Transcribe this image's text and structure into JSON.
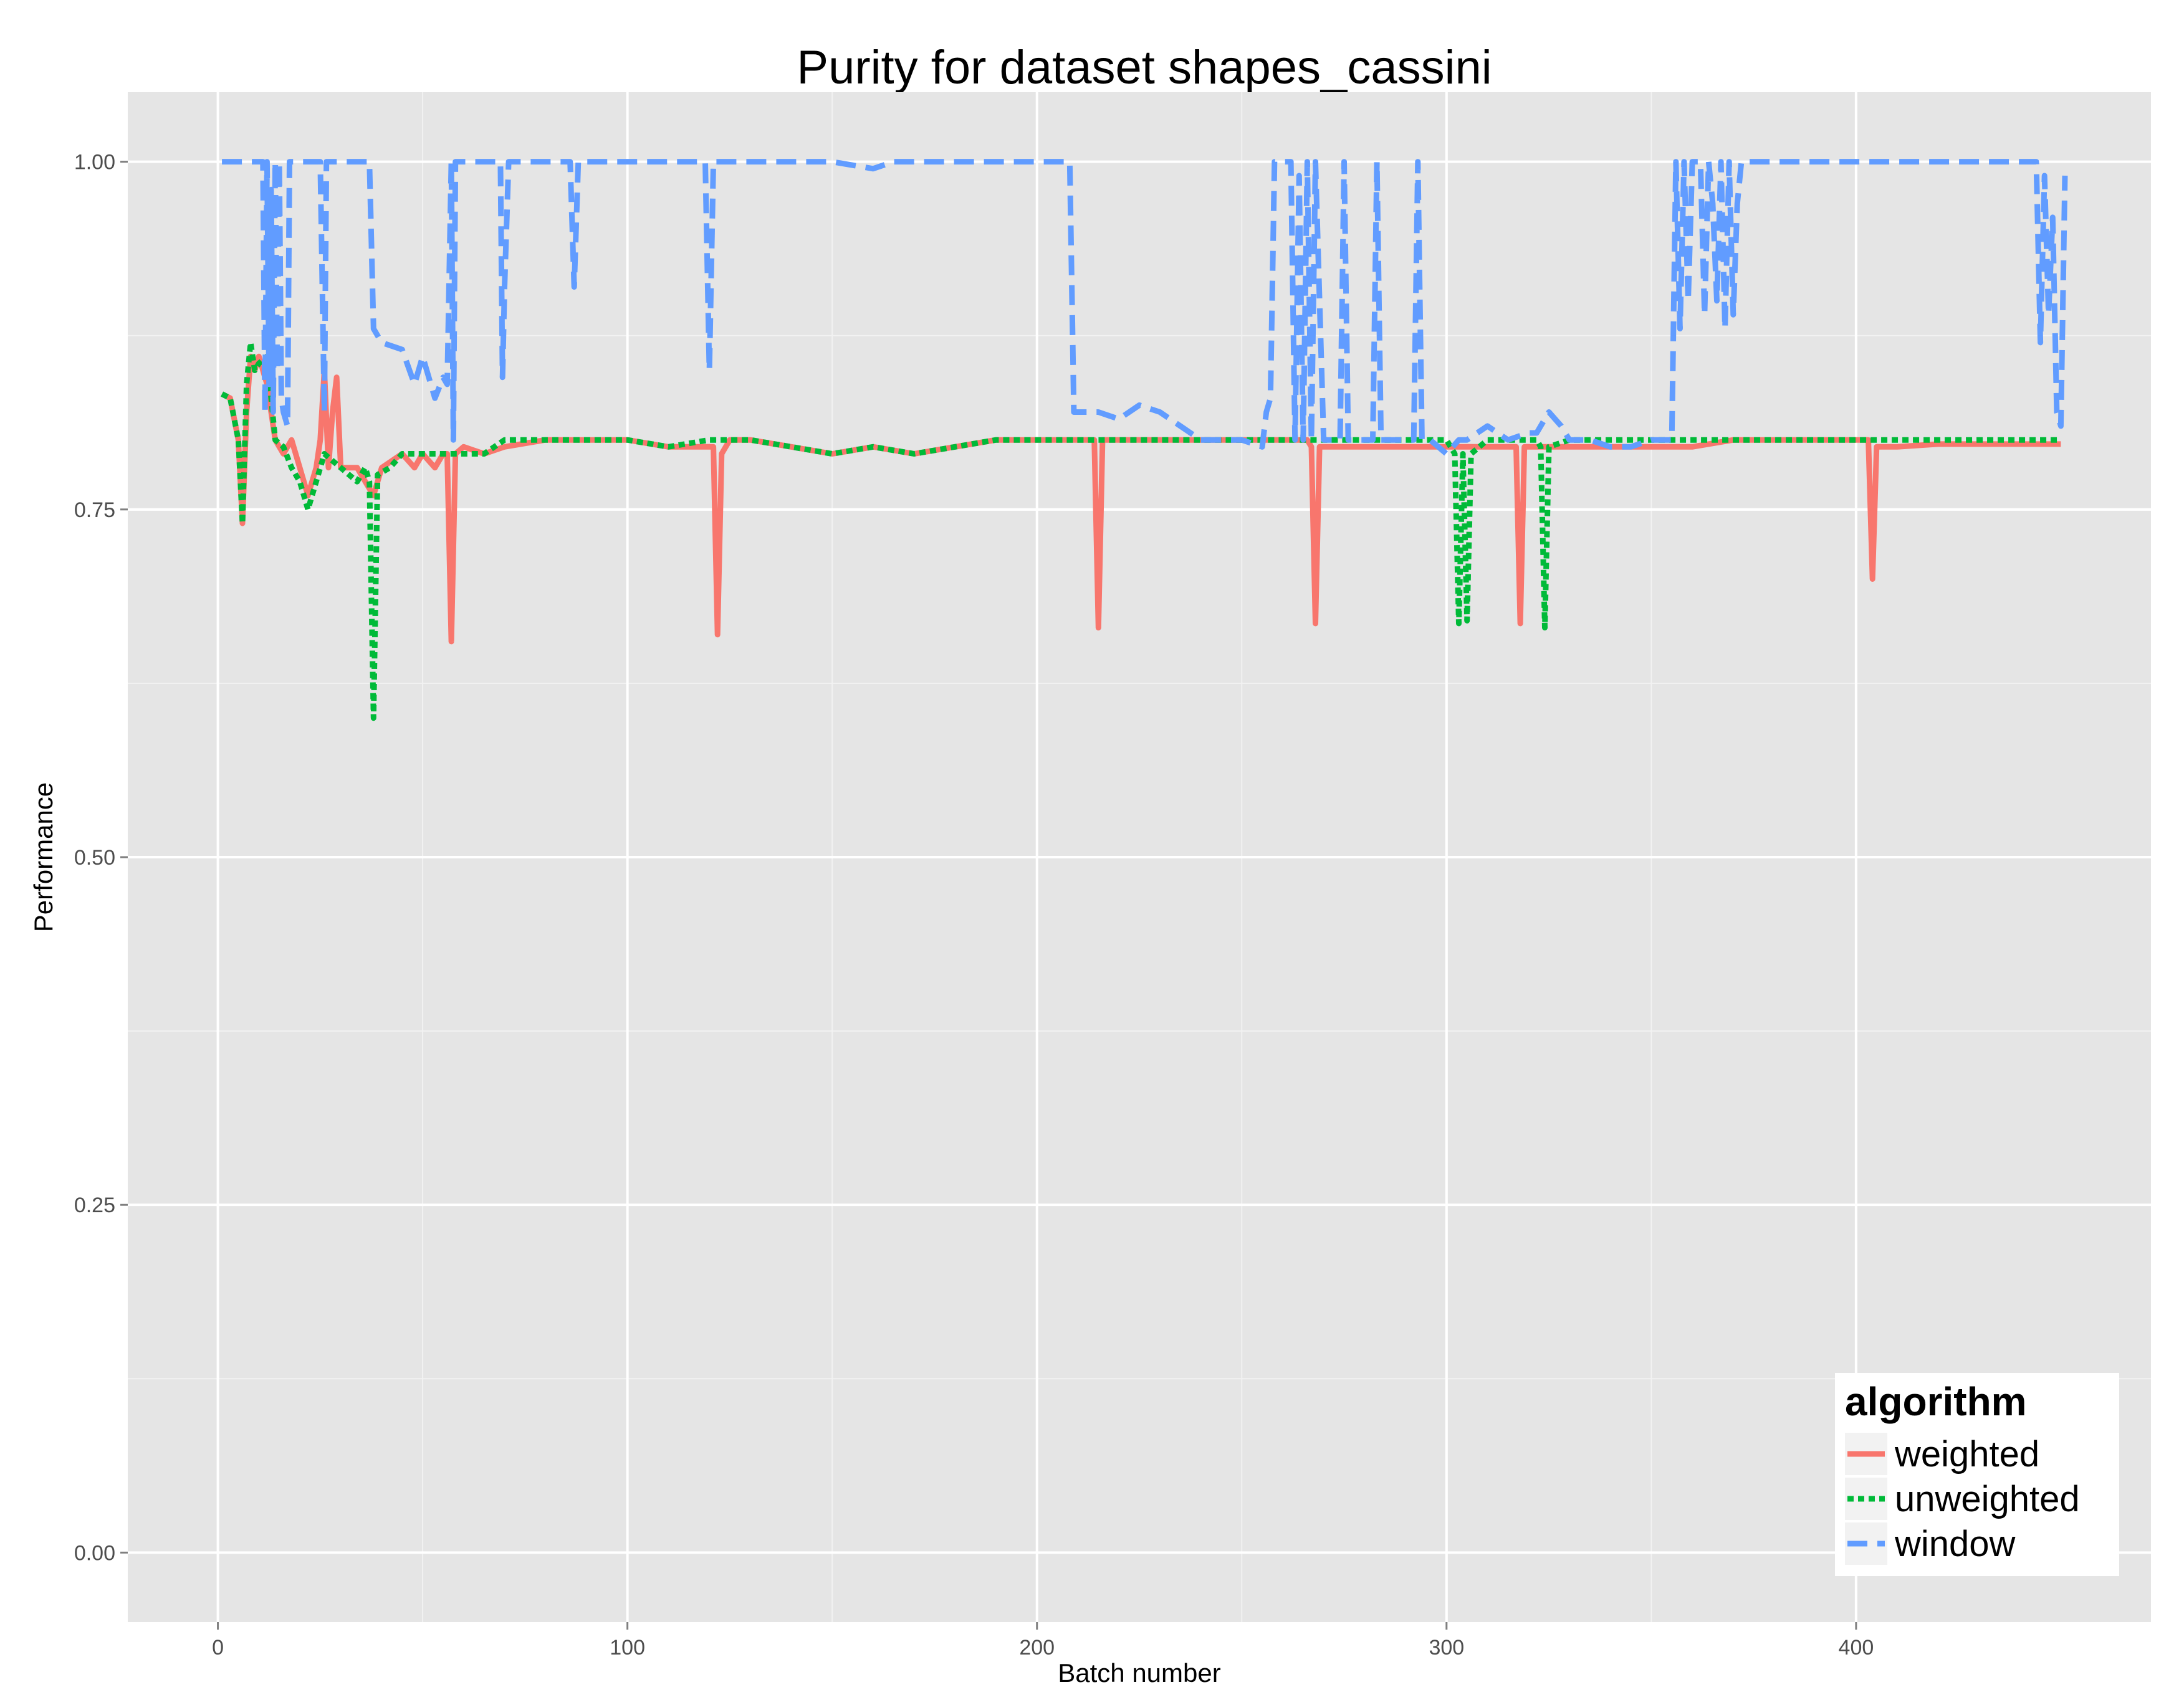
{
  "chart_data": {
    "type": "line",
    "title": "Purity for dataset shapes_cassini",
    "xlabel": "Batch number",
    "ylabel": "Performance",
    "xlim": [
      -22,
      472
    ],
    "ylim": [
      -0.05,
      1.05
    ],
    "x_ticks": [
      0,
      100,
      200,
      300,
      400
    ],
    "x_tick_labels": [
      "0",
      "100",
      "200",
      "300",
      "400"
    ],
    "y_ticks": [
      0,
      0.25,
      0.5,
      0.75,
      1
    ],
    "y_tick_labels": [
      "0.00",
      "0.25",
      "0.50",
      "0.75",
      "1.00"
    ],
    "grid": true,
    "legend": {
      "title": "algorithm",
      "position": "bottom-right",
      "entries": [
        "weighted",
        "unweighted",
        "window"
      ]
    },
    "series": [
      {
        "name": "weighted",
        "color": "#F8766D",
        "dash": "solid",
        "points": [
          [
            1,
            0.833
          ],
          [
            3,
            0.83
          ],
          [
            5,
            0.8
          ],
          [
            6,
            0.74
          ],
          [
            7,
            0.82
          ],
          [
            8,
            0.86
          ],
          [
            9,
            0.85
          ],
          [
            10,
            0.86
          ],
          [
            12,
            0.84
          ],
          [
            14,
            0.8
          ],
          [
            16,
            0.79
          ],
          [
            18,
            0.8
          ],
          [
            20,
            0.78
          ],
          [
            22,
            0.76
          ],
          [
            24,
            0.78
          ],
          [
            25,
            0.8
          ],
          [
            26,
            0.85
          ],
          [
            27,
            0.78
          ],
          [
            28,
            0.82
          ],
          [
            29,
            0.845
          ],
          [
            30,
            0.78
          ],
          [
            32,
            0.78
          ],
          [
            34,
            0.78
          ],
          [
            36,
            0.77
          ],
          [
            38,
            0.76
          ],
          [
            40,
            0.78
          ],
          [
            45,
            0.79
          ],
          [
            48,
            0.78
          ],
          [
            50,
            0.79
          ],
          [
            53,
            0.78
          ],
          [
            55,
            0.79
          ],
          [
            56,
            0.79
          ],
          [
            57,
            0.655
          ],
          [
            58,
            0.79
          ],
          [
            60,
            0.795
          ],
          [
            65,
            0.79
          ],
          [
            70,
            0.795
          ],
          [
            80,
            0.8
          ],
          [
            90,
            0.8
          ],
          [
            100,
            0.8
          ],
          [
            110,
            0.795
          ],
          [
            120,
            0.795
          ],
          [
            121,
            0.795
          ],
          [
            122,
            0.66
          ],
          [
            123,
            0.79
          ],
          [
            125,
            0.8
          ],
          [
            130,
            0.8
          ],
          [
            140,
            0.795
          ],
          [
            150,
            0.79
          ],
          [
            160,
            0.795
          ],
          [
            170,
            0.79
          ],
          [
            180,
            0.795
          ],
          [
            190,
            0.8
          ],
          [
            200,
            0.8
          ],
          [
            210,
            0.8
          ],
          [
            214,
            0.8
          ],
          [
            215,
            0.665
          ],
          [
            216,
            0.8
          ],
          [
            220,
            0.8
          ],
          [
            230,
            0.8
          ],
          [
            240,
            0.8
          ],
          [
            250,
            0.8
          ],
          [
            260,
            0.8
          ],
          [
            266,
            0.8
          ],
          [
            267,
            0.795
          ],
          [
            268,
            0.668
          ],
          [
            269,
            0.795
          ],
          [
            272,
            0.795
          ],
          [
            280,
            0.795
          ],
          [
            290,
            0.795
          ],
          [
            300,
            0.795
          ],
          [
            310,
            0.795
          ],
          [
            316,
            0.795
          ],
          [
            317,
            0.795
          ],
          [
            318,
            0.668
          ],
          [
            319,
            0.795
          ],
          [
            322,
            0.795
          ],
          [
            330,
            0.795
          ],
          [
            340,
            0.795
          ],
          [
            350,
            0.795
          ],
          [
            360,
            0.795
          ],
          [
            370,
            0.8
          ],
          [
            380,
            0.8
          ],
          [
            390,
            0.8
          ],
          [
            402,
            0.8
          ],
          [
            403,
            0.8
          ],
          [
            404,
            0.7
          ],
          [
            405,
            0.795
          ],
          [
            410,
            0.795
          ],
          [
            420,
            0.797
          ],
          [
            430,
            0.797
          ],
          [
            440,
            0.797
          ],
          [
            450,
            0.797
          ]
        ]
      },
      {
        "name": "unweighted",
        "color": "#00BA38",
        "dash": "dotted",
        "points": [
          [
            1,
            0.833
          ],
          [
            3,
            0.83
          ],
          [
            5,
            0.8
          ],
          [
            6,
            0.74
          ],
          [
            7,
            0.84
          ],
          [
            8,
            0.87
          ],
          [
            9,
            0.85
          ],
          [
            10,
            0.855
          ],
          [
            12,
            0.86
          ],
          [
            14,
            0.8
          ],
          [
            16,
            0.795
          ],
          [
            18,
            0.78
          ],
          [
            20,
            0.77
          ],
          [
            22,
            0.75
          ],
          [
            24,
            0.77
          ],
          [
            26,
            0.79
          ],
          [
            28,
            0.785
          ],
          [
            30,
            0.78
          ],
          [
            34,
            0.77
          ],
          [
            36,
            0.78
          ],
          [
            37,
            0.77
          ],
          [
            38,
            0.6
          ],
          [
            39,
            0.775
          ],
          [
            42,
            0.78
          ],
          [
            45,
            0.79
          ],
          [
            50,
            0.79
          ],
          [
            55,
            0.79
          ],
          [
            58,
            0.79
          ],
          [
            60,
            0.79
          ],
          [
            65,
            0.79
          ],
          [
            70,
            0.8
          ],
          [
            80,
            0.8
          ],
          [
            90,
            0.8
          ],
          [
            100,
            0.8
          ],
          [
            110,
            0.795
          ],
          [
            120,
            0.8
          ],
          [
            125,
            0.8
          ],
          [
            130,
            0.8
          ],
          [
            140,
            0.795
          ],
          [
            150,
            0.79
          ],
          [
            160,
            0.795
          ],
          [
            170,
            0.79
          ],
          [
            180,
            0.795
          ],
          [
            190,
            0.8
          ],
          [
            200,
            0.8
          ],
          [
            210,
            0.8
          ],
          [
            220,
            0.8
          ],
          [
            230,
            0.8
          ],
          [
            240,
            0.8
          ],
          [
            250,
            0.8
          ],
          [
            260,
            0.8
          ],
          [
            270,
            0.8
          ],
          [
            280,
            0.8
          ],
          [
            290,
            0.8
          ],
          [
            300,
            0.8
          ],
          [
            302,
            0.79
          ],
          [
            303,
            0.668
          ],
          [
            304,
            0.79
          ],
          [
            305,
            0.67
          ],
          [
            306,
            0.79
          ],
          [
            310,
            0.8
          ],
          [
            320,
            0.8
          ],
          [
            322,
            0.8
          ],
          [
            323,
            0.795
          ],
          [
            324,
            0.665
          ],
          [
            325,
            0.795
          ],
          [
            330,
            0.8
          ],
          [
            340,
            0.8
          ],
          [
            350,
            0.8
          ],
          [
            360,
            0.8
          ],
          [
            370,
            0.8
          ],
          [
            380,
            0.8
          ],
          [
            390,
            0.8
          ],
          [
            400,
            0.8
          ],
          [
            410,
            0.8
          ],
          [
            420,
            0.8
          ],
          [
            430,
            0.8
          ],
          [
            440,
            0.8
          ],
          [
            450,
            0.8
          ]
        ]
      },
      {
        "name": "window",
        "color": "#619CFF",
        "dash": "dashed",
        "points": [
          [
            1,
            1.0
          ],
          [
            11,
            1.0
          ],
          [
            11.5,
            0.82
          ],
          [
            12,
            1.0
          ],
          [
            12.5,
            0.84
          ],
          [
            13,
            0.98
          ],
          [
            13.5,
            0.82
          ],
          [
            14,
            1.0
          ],
          [
            14.5,
            0.85
          ],
          [
            15,
            1.0
          ],
          [
            15.5,
            0.83
          ],
          [
            16,
            0.82
          ],
          [
            17,
            0.81
          ],
          [
            17.5,
            1.0
          ],
          [
            25,
            1.0
          ],
          [
            26,
            0.82
          ],
          [
            26.5,
            1.0
          ],
          [
            30,
            1.0
          ],
          [
            35,
            1.0
          ],
          [
            37,
            1.0
          ],
          [
            38,
            0.88
          ],
          [
            40,
            0.87
          ],
          [
            45,
            0.865
          ],
          [
            48,
            0.84
          ],
          [
            50,
            0.86
          ],
          [
            53,
            0.83
          ],
          [
            55,
            0.845
          ],
          [
            56,
            0.84
          ],
          [
            57,
            1.0
          ],
          [
            57.5,
            0.8
          ],
          [
            58,
            1.0
          ],
          [
            60,
            1.0
          ],
          [
            65,
            1.0
          ],
          [
            69,
            1.0
          ],
          [
            69.5,
            0.845
          ],
          [
            70,
            0.91
          ],
          [
            71,
            1.0
          ],
          [
            75,
            1.0
          ],
          [
            80,
            1.0
          ],
          [
            86,
            1.0
          ],
          [
            87,
            0.91
          ],
          [
            88,
            1.0
          ],
          [
            95,
            1.0
          ],
          [
            100,
            1.0
          ],
          [
            110,
            1.0
          ],
          [
            119,
            1.0
          ],
          [
            120,
            0.85
          ],
          [
            121,
            1.0
          ],
          [
            125,
            1.0
          ],
          [
            130,
            1.0
          ],
          [
            140,
            1.0
          ],
          [
            150,
            1.0
          ],
          [
            160,
            0.995
          ],
          [
            165,
            1.0
          ],
          [
            170,
            1.0
          ],
          [
            180,
            1.0
          ],
          [
            190,
            1.0
          ],
          [
            200,
            1.0
          ],
          [
            208,
            1.0
          ],
          [
            209,
            0.82
          ],
          [
            215,
            0.82
          ],
          [
            220,
            0.815
          ],
          [
            225,
            0.825
          ],
          [
            230,
            0.82
          ],
          [
            235,
            0.81
          ],
          [
            240,
            0.8
          ],
          [
            245,
            0.8
          ],
          [
            250,
            0.8
          ],
          [
            255,
            0.795
          ],
          [
            256,
            0.82
          ],
          [
            257,
            0.83
          ],
          [
            258,
            1.0
          ],
          [
            262,
            1.0
          ],
          [
            263,
            0.8
          ],
          [
            264,
            0.99
          ],
          [
            265,
            0.8
          ],
          [
            266,
            1.0
          ],
          [
            267,
            0.8
          ],
          [
            268,
            1.0
          ],
          [
            270,
            0.8
          ],
          [
            274,
            0.8
          ],
          [
            275,
            1.0
          ],
          [
            276,
            0.8
          ],
          [
            280,
            0.8
          ],
          [
            282,
            0.8
          ],
          [
            283,
            1.0
          ],
          [
            284,
            0.8
          ],
          [
            290,
            0.8
          ],
          [
            292,
            0.8
          ],
          [
            293,
            1.0
          ],
          [
            294,
            0.8
          ],
          [
            296,
            0.8
          ],
          [
            300,
            0.79
          ],
          [
            303,
            0.8
          ],
          [
            305,
            0.8
          ],
          [
            310,
            0.81
          ],
          [
            315,
            0.8
          ],
          [
            320,
            0.805
          ],
          [
            322,
            0.805
          ],
          [
            325,
            0.82
          ],
          [
            328,
            0.81
          ],
          [
            330,
            0.8
          ],
          [
            335,
            0.8
          ],
          [
            340,
            0.795
          ],
          [
            345,
            0.795
          ],
          [
            350,
            0.8
          ],
          [
            355,
            0.8
          ],
          [
            356,
            1.0
          ],
          [
            357,
            0.88
          ],
          [
            358,
            1.0
          ],
          [
            359,
            0.9
          ],
          [
            360,
            1.0
          ],
          [
            362,
            1.0
          ],
          [
            363,
            0.89
          ],
          [
            364,
            1.0
          ],
          [
            365,
            0.97
          ],
          [
            366,
            0.9
          ],
          [
            367,
            1.0
          ],
          [
            368,
            0.88
          ],
          [
            369,
            1.0
          ],
          [
            370,
            0.89
          ],
          [
            371,
            0.97
          ],
          [
            372,
            1.0
          ],
          [
            375,
            1.0
          ],
          [
            380,
            1.0
          ],
          [
            390,
            1.0
          ],
          [
            400,
            1.0
          ],
          [
            410,
            1.0
          ],
          [
            420,
            1.0
          ],
          [
            430,
            1.0
          ],
          [
            440,
            1.0
          ],
          [
            444,
            1.0
          ],
          [
            445,
            0.87
          ],
          [
            446,
            0.99
          ],
          [
            447,
            0.89
          ],
          [
            448,
            0.96
          ],
          [
            449,
            0.82
          ],
          [
            450,
            0.81
          ],
          [
            451,
            0.99
          ]
        ]
      }
    ]
  }
}
